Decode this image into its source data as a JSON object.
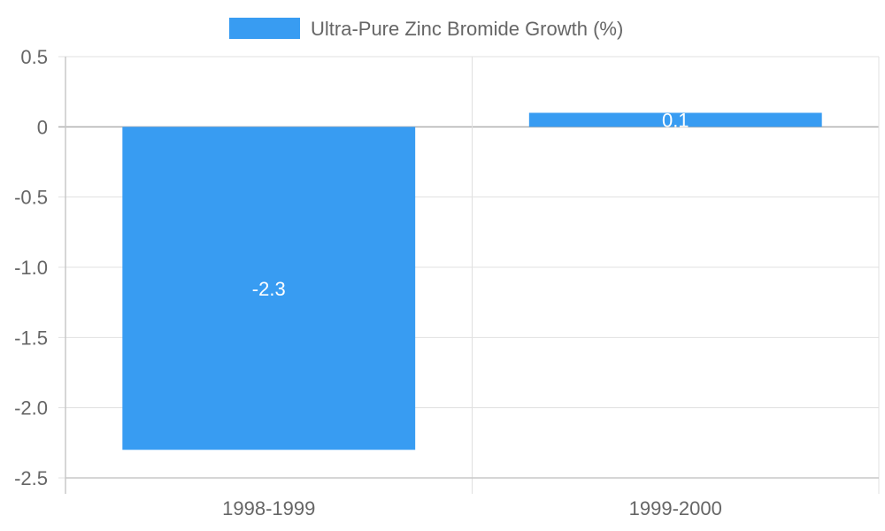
{
  "chart_data": {
    "type": "bar",
    "categories": [
      "1998-1999",
      "1999-2000"
    ],
    "series": [
      {
        "name": "Ultra-Pure Zinc Bromide Growth (%)",
        "values": [
          -2.3,
          0.1
        ],
        "color": "#389cf2"
      }
    ],
    "data_labels": [
      "-2.3",
      "0.1"
    ],
    "y_ticks": [
      0.5,
      0,
      -0.5,
      -1.0,
      -1.5,
      -2.0,
      -2.5
    ],
    "y_tick_labels": [
      "0.5",
      "0",
      "-0.5",
      "-1.0",
      "-1.5",
      "-2.0",
      "-2.5"
    ],
    "ylim": [
      -2.5,
      0.5
    ],
    "xlabel": "",
    "ylabel": "",
    "grid": true,
    "legend": "top-center",
    "colors": {
      "grid": "#e0e0e0",
      "axis": "#c8c8c8",
      "zero_line": "#b0b0b0",
      "text": "#666666"
    }
  }
}
